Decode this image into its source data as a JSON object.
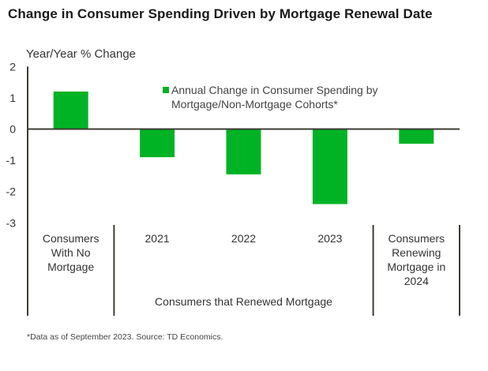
{
  "chart_data": {
    "type": "bar",
    "title": "Change in Consumer Spending Driven by Mortgage Renewal Date",
    "ylabel": "Year/Year % Change",
    "xlabel": "",
    "ylim": [
      -3,
      2
    ],
    "yticks": [
      "2",
      "1",
      "0",
      "-1",
      "-2",
      "-3"
    ],
    "ytick_values": [
      2,
      1,
      0,
      -1,
      -2,
      -3
    ],
    "grid": false,
    "legend_position": "top-center",
    "categories": [
      {
        "label_lines": [
          "Consumers",
          "With No",
          "Mortgage"
        ]
      },
      {
        "label_lines": [
          "2021"
        ]
      },
      {
        "label_lines": [
          "2022"
        ]
      },
      {
        "label_lines": [
          "2023"
        ]
      },
      {
        "label_lines": [
          "Consumers",
          "Renewing",
          "Mortgage in",
          "2024"
        ]
      }
    ],
    "group_label": "Consumers that Renewed Mortgage",
    "series": [
      {
        "name": "Annual Change in Consumer Spending by Mortgage/Non-Mortgage Cohorts*",
        "legend_lines": [
          "Annual Change in Consumer Spending by",
          "Mortgage/Non-Mortgage Cohorts*"
        ],
        "color": "#00b324",
        "values": [
          1.2,
          -0.9,
          -1.45,
          -2.4,
          -0.47
        ]
      }
    ],
    "footnote": "*Data  as of September  2023.  Source:  TD Economics."
  }
}
